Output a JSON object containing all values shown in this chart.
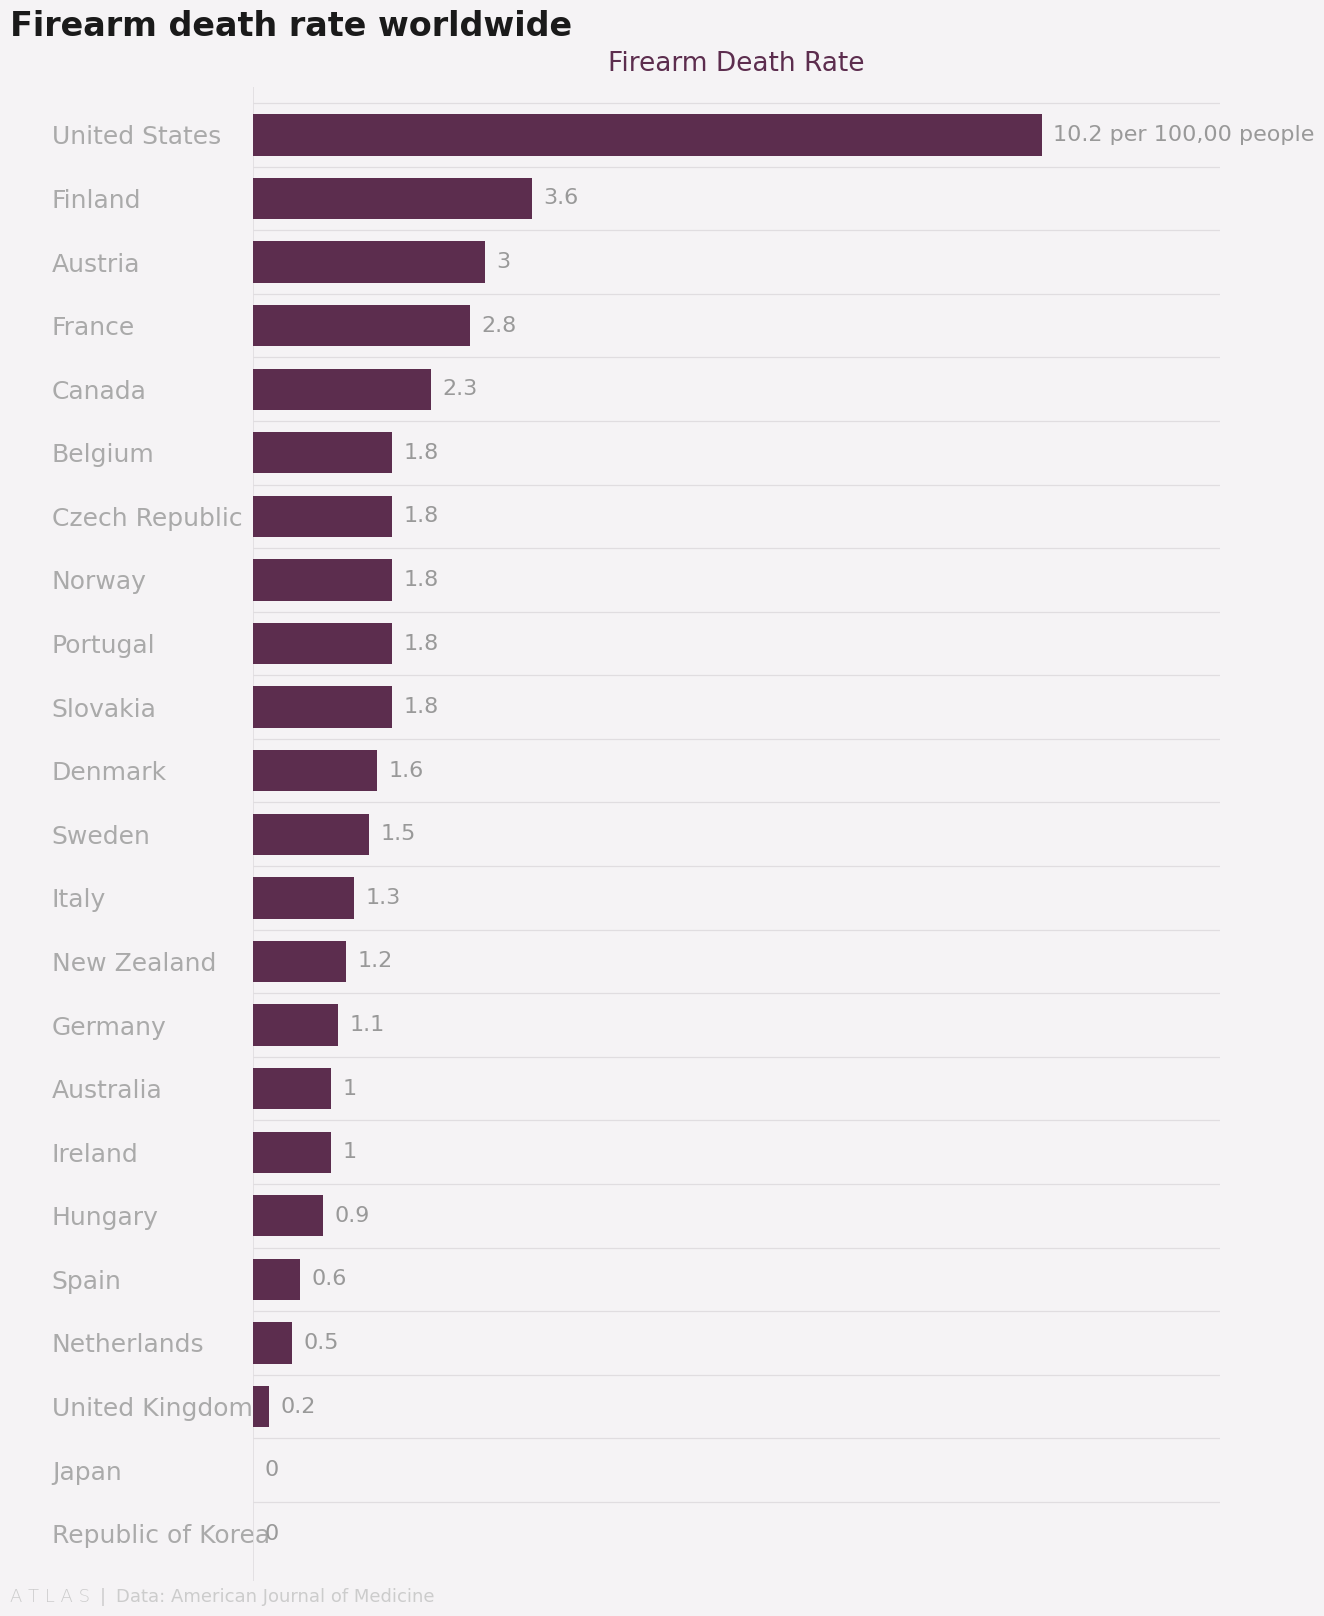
{
  "title": "Firearm death rate worldwide",
  "subtitle": "Firearm Death Rate",
  "footer_left": "A T L A S",
  "footer_right": "Data: American Journal of Medicine",
  "countries": [
    "United States",
    "Finland",
    "Austria",
    "France",
    "Canada",
    "Belgium",
    "Czech Republic",
    "Norway",
    "Portugal",
    "Slovakia",
    "Denmark",
    "Sweden",
    "Italy",
    "New Zealand",
    "Germany",
    "Australia",
    "Ireland",
    "Hungary",
    "Spain",
    "Netherlands",
    "United Kingdom",
    "Japan",
    "Republic of Korea"
  ],
  "values": [
    10.2,
    3.6,
    3.0,
    2.8,
    2.3,
    1.8,
    1.8,
    1.8,
    1.8,
    1.8,
    1.6,
    1.5,
    1.3,
    1.2,
    1.1,
    1.0,
    1.0,
    0.9,
    0.6,
    0.5,
    0.2,
    0.0,
    0.0
  ],
  "labels": [
    "10.2 per 100,00 people",
    "3.6",
    "3",
    "2.8",
    "2.3",
    "1.8",
    "1.8",
    "1.8",
    "1.8",
    "1.8",
    "1.6",
    "1.5",
    "1.3",
    "1.2",
    "1.1",
    "1",
    "1",
    "0.9",
    "0.6",
    "0.5",
    "0.2",
    "0",
    "0"
  ],
  "bar_color": "#5c2d4e",
  "bg_color": "#f5f3f5",
  "country_color": "#aaaaaa",
  "label_color": "#999999",
  "title_color": "#1a1a1a",
  "subtitle_color": "#5c2d4e",
  "footer_color": "#cccccc",
  "grid_color": "#e0dde0",
  "title_fontsize": 24,
  "subtitle_fontsize": 19,
  "label_fontsize": 16,
  "country_fontsize": 18,
  "footer_fontsize": 13,
  "xlim": [
    0,
    12.5
  ],
  "bar_height": 0.65
}
